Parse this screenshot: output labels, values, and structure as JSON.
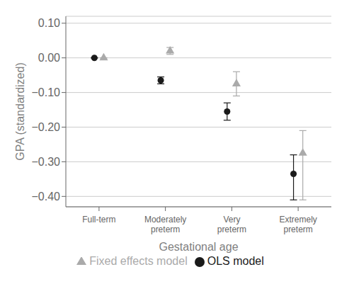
{
  "chart_data": {
    "type": "errorbar",
    "categories": [
      "Full-term",
      "Moderately\npreterm",
      "Very\npreterm",
      "Extremely\npreterm"
    ],
    "x_label": "Gestational age",
    "y_label": "GPA (standardized)",
    "series": [
      {
        "name": "OLS model",
        "color": "#1a1a1a",
        "marker": "circle",
        "values": [
          0.0,
          -0.065,
          -0.155,
          -0.335
        ],
        "ci_lo": [
          0.0,
          -0.075,
          -0.18,
          -0.41
        ],
        "ci_hi": [
          0.0,
          -0.055,
          -0.13,
          -0.28
        ]
      },
      {
        "name": "Fixed effects model",
        "color": "#aaaaaa",
        "marker": "triangle",
        "values": [
          0.0,
          0.02,
          -0.075,
          -0.275
        ],
        "ci_lo": [
          0.0,
          0.01,
          -0.11,
          -0.41
        ],
        "ci_hi": [
          0.0,
          0.03,
          -0.04,
          -0.21
        ]
      }
    ],
    "ylim": [
      -0.43,
      0.12
    ],
    "yticks": [
      {
        "value": 0.1,
        "label": "0.10"
      },
      {
        "value": 0,
        "label": "0.00"
      },
      {
        "value": -0.1,
        "label": "−0.10"
      },
      {
        "value": -0.2,
        "label": "−0.20"
      },
      {
        "value": -0.3,
        "label": "−0.30"
      },
      {
        "value": -0.4,
        "label": "−0.40"
      }
    ],
    "grid": "y",
    "legend": "bottom"
  }
}
